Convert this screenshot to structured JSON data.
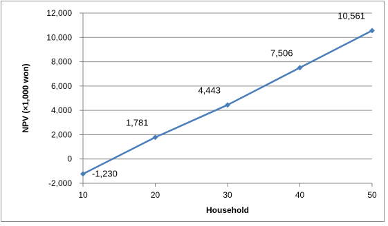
{
  "chart_data": {
    "type": "line",
    "xlabel": "Household",
    "ylabel": "NPV (×1,000 won)",
    "x": [
      10,
      20,
      30,
      40,
      50
    ],
    "xticks": [
      "10",
      "20",
      "30",
      "40",
      "50"
    ],
    "yticks": [
      "-2,000",
      "0",
      "2,000",
      "4,000",
      "6,000",
      "8,000",
      "10,000",
      "12,000"
    ],
    "ytick_values": [
      -2000,
      0,
      2000,
      4000,
      6000,
      8000,
      10000,
      12000
    ],
    "xlim": [
      10,
      50
    ],
    "ylim": [
      -2000,
      12000
    ],
    "grid": "horizontal",
    "legend": "none",
    "series": [
      {
        "values": [
          -1230,
          1781,
          4443,
          7506,
          10561
        ],
        "labels": [
          "-1,230",
          "1,781",
          "4,443",
          "7,506",
          "10,561"
        ],
        "color": "#4a7ebb",
        "negative_label_color": "#ff0000"
      }
    ]
  }
}
